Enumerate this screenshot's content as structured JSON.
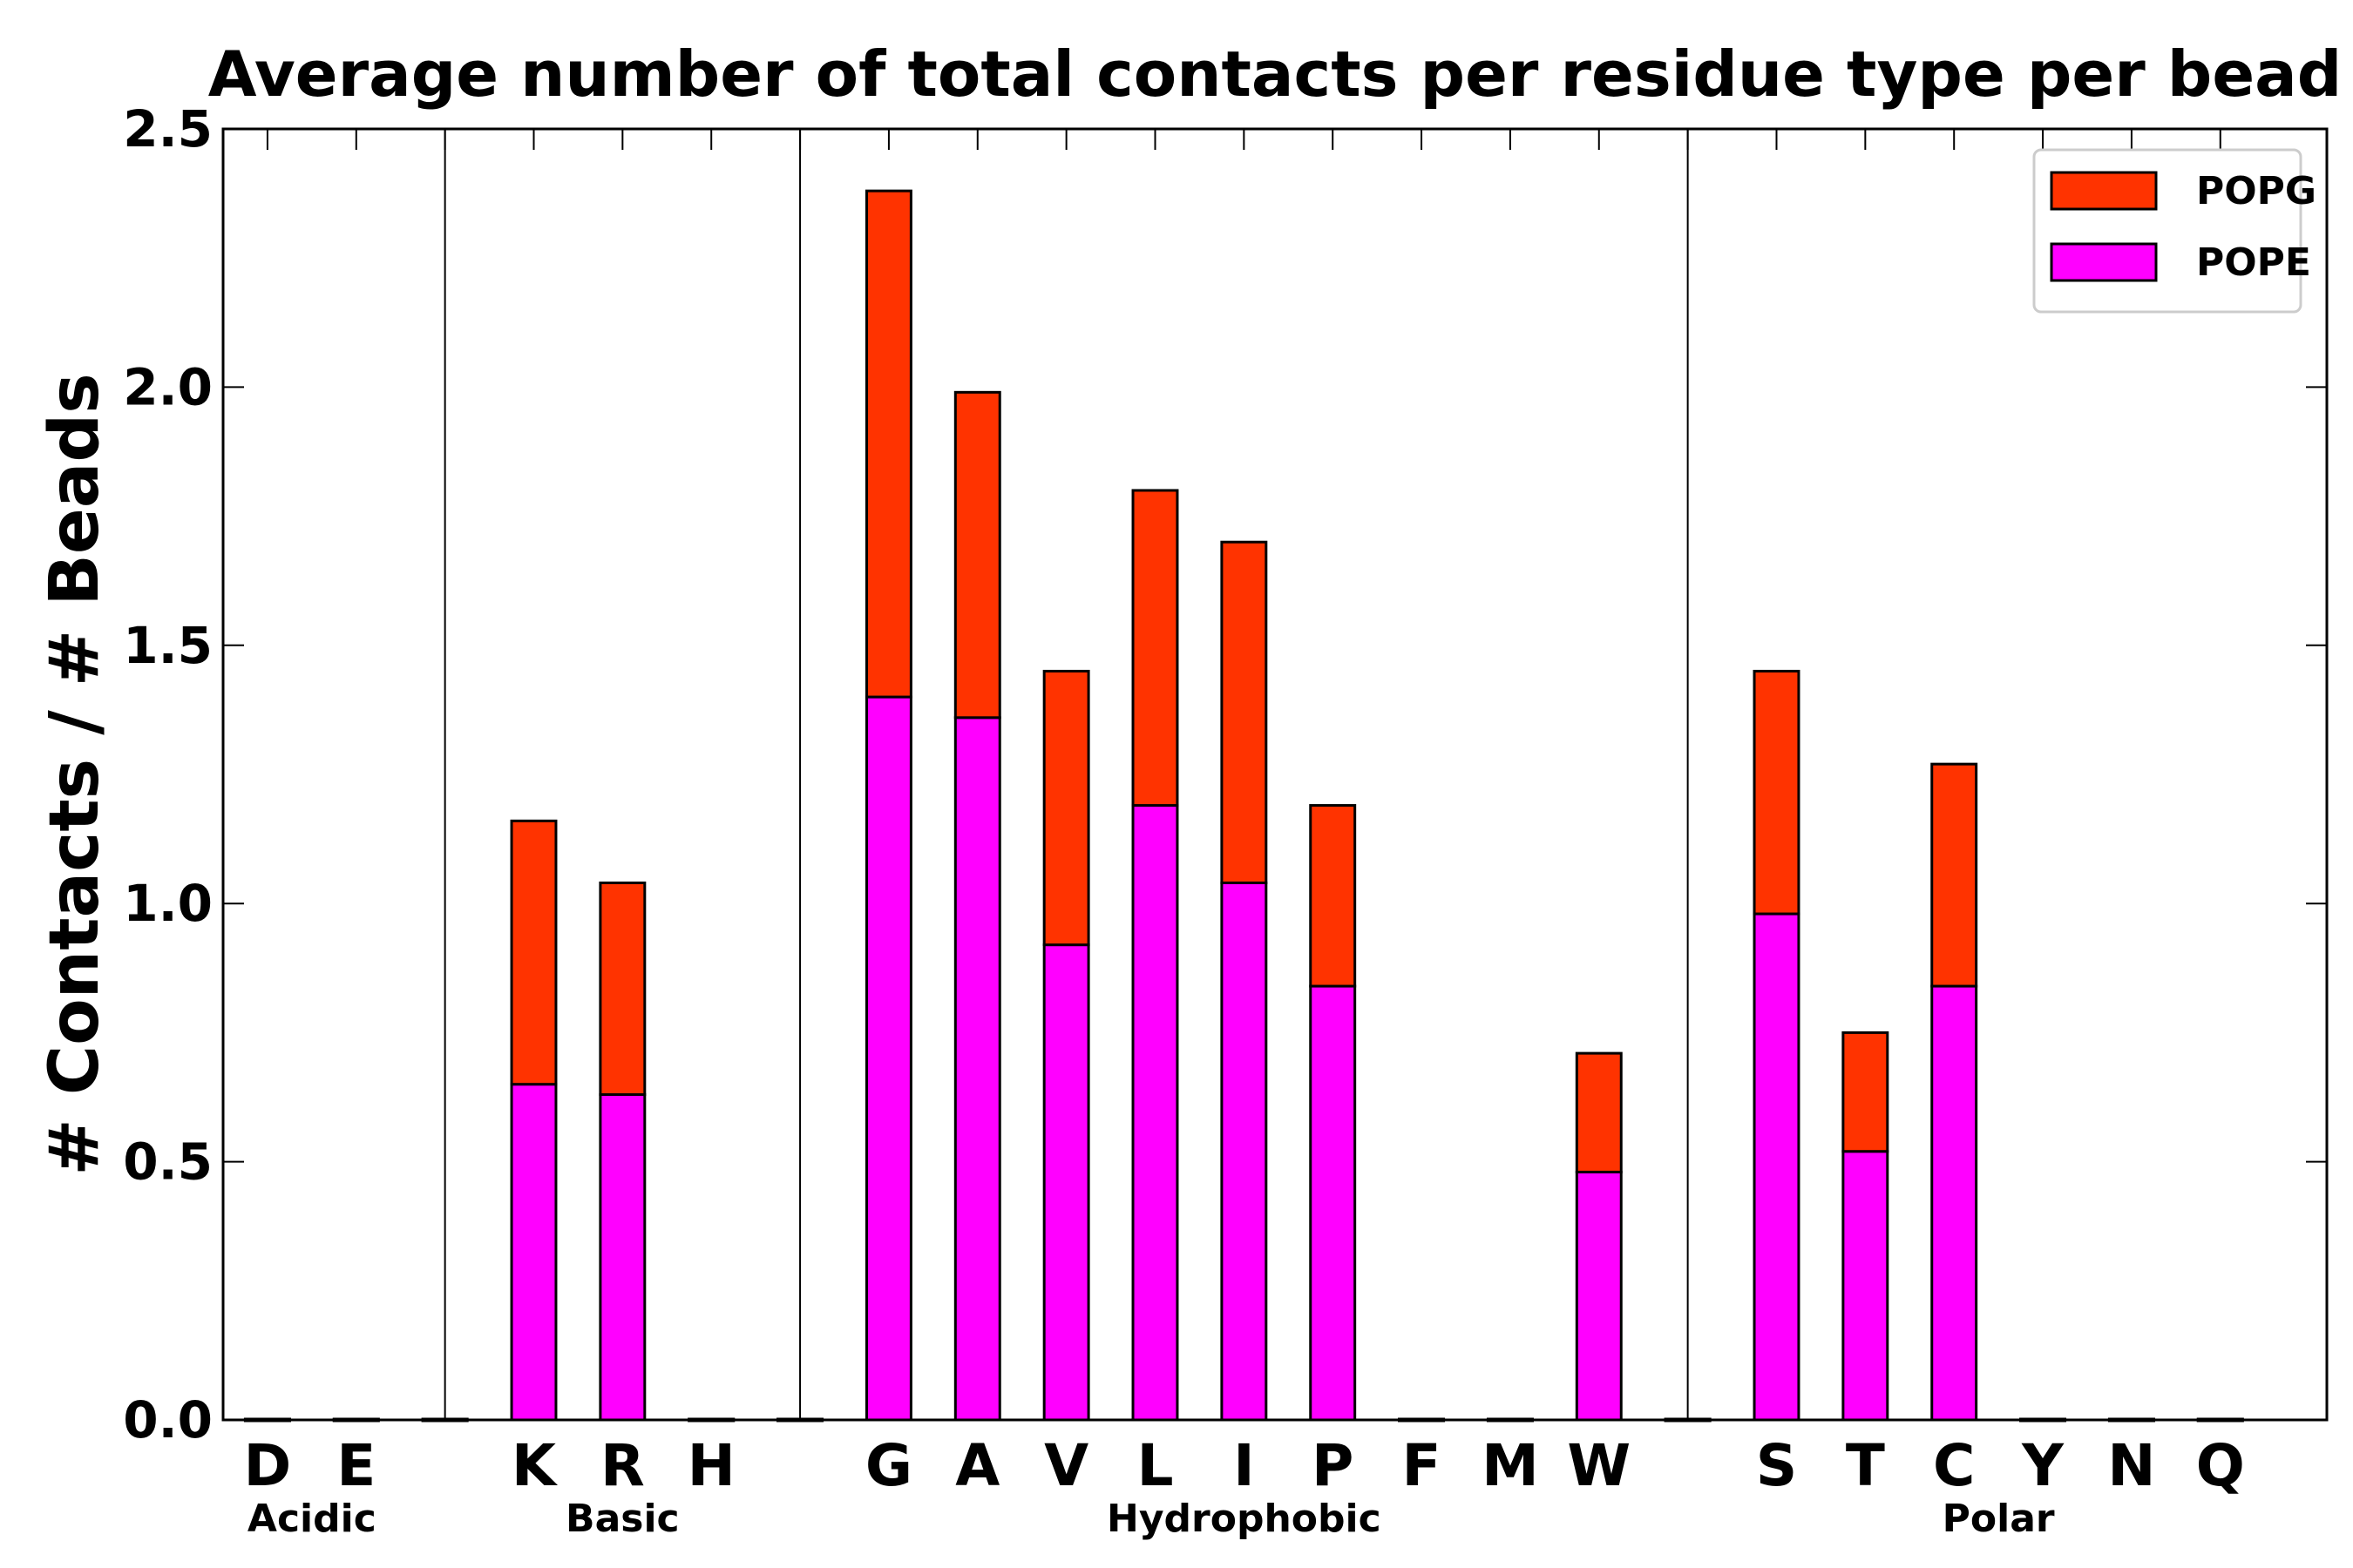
{
  "chart_data": {
    "type": "bar",
    "stacked": true,
    "title": "Average number of total contacts per residue type per bead",
    "xlabel": "",
    "ylabel": "# Contacts / # Beads",
    "ylim": [
      0,
      2.5
    ],
    "yticks": [
      "0.0",
      "0.5",
      "1.0",
      "1.5",
      "2.0",
      "2.5"
    ],
    "grid": false,
    "legend_position": "top-right",
    "slots": [
      "D",
      "E",
      "",
      "K",
      "R",
      "H",
      "",
      "G",
      "A",
      "V",
      "L",
      "I",
      "P",
      "F",
      "M",
      "W",
      "",
      "S",
      "T",
      "C",
      "Y",
      "N",
      "Q"
    ],
    "series": [
      {
        "name": "POPE",
        "color": "#ff00ff",
        "values": [
          0,
          0,
          0,
          0.65,
          0.63,
          0,
          0,
          1.4,
          1.36,
          0.92,
          1.19,
          1.04,
          0.84,
          0,
          0,
          0.48,
          0,
          0.98,
          0.52,
          0.84,
          0,
          0,
          0
        ]
      },
      {
        "name": "POPG",
        "color": "#ff3300",
        "values": [
          0,
          0,
          0,
          0.51,
          0.41,
          0,
          0,
          0.98,
          0.63,
          0.53,
          0.61,
          0.66,
          0.35,
          0,
          0,
          0.23,
          0,
          0.47,
          0.23,
          0.43,
          0,
          0,
          0
        ]
      }
    ],
    "legend_order": [
      "POPG",
      "POPE"
    ],
    "groups": [
      {
        "label": "Acidic",
        "first_slot": 0,
        "last_slot": 1
      },
      {
        "label": "Basic",
        "first_slot": 3,
        "last_slot": 5
      },
      {
        "label": "Hydrophobic",
        "first_slot": 7,
        "last_slot": 15
      },
      {
        "label": "Polar",
        "first_slot": 17,
        "last_slot": 22
      }
    ],
    "separator_slots": [
      2,
      6,
      16
    ]
  }
}
